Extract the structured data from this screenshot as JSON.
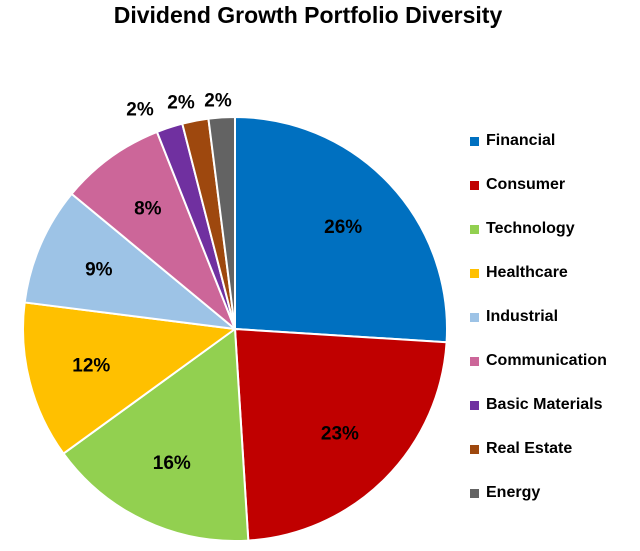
{
  "chart_data": {
    "type": "pie",
    "title": "Dividend Growth Portfolio Diversity",
    "legend_position": "right",
    "slices": [
      {
        "label": "Financial",
        "value": 26,
        "display": "26%",
        "color": "#0070C0"
      },
      {
        "label": "Consumer",
        "value": 23,
        "display": "23%",
        "color": "#C00000"
      },
      {
        "label": "Technology",
        "value": 16,
        "display": "16%",
        "color": "#92D050"
      },
      {
        "label": "Healthcare",
        "value": 12,
        "display": "12%",
        "color": "#FFC000"
      },
      {
        "label": "Industrial",
        "value": 9,
        "display": "9%",
        "color": "#9DC3E6"
      },
      {
        "label": "Communication",
        "value": 8,
        "display": "8%",
        "color": "#CC6699"
      },
      {
        "label": "Basic Materials",
        "value": 2,
        "display": "2%",
        "color": "#7030A0"
      },
      {
        "label": "Real Estate",
        "value": 2,
        "display": "2%",
        "color": "#9E480E"
      },
      {
        "label": "Energy",
        "value": 2,
        "display": "2%",
        "color": "#636363"
      }
    ]
  }
}
